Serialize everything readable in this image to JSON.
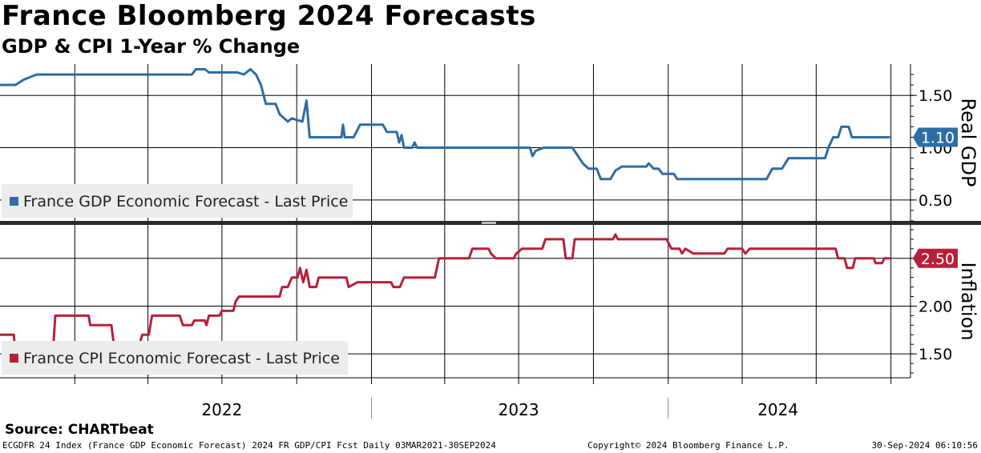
{
  "header": {
    "title": "France Bloomberg 2024 Forecasts",
    "subtitle": "GDP & CPI 1-Year % Change"
  },
  "footer": {
    "source": "Source: CHARTbeat",
    "left": "ECGDFR 24 Index (France GDP Economic Forecast) 2024 FR GDP/CPI Fcst  Daily 03MAR2021-30SEP2024",
    "center": "Copyright© 2024 Bloomberg Finance L.P.",
    "right": "30-Sep-2024 06:10:56"
  },
  "colors": {
    "gdp": "#2e6da4",
    "cpi": "#b8203a",
    "grid": "#000000",
    "legend_bg": "#ececec"
  },
  "chart_data": [
    {
      "type": "line",
      "panel": "top",
      "ylabel": "Real GDP",
      "ylim": [
        0.3,
        1.8
      ],
      "yticks": [
        0.5,
        1.0,
        1.5
      ],
      "ytick_labels": [
        "0.50",
        "1.00",
        "1.50"
      ],
      "xlim": [
        "2021-10-01",
        "2024-10-25"
      ],
      "x_gridlines": [
        "2022-01-01",
        "2022-04-01",
        "2022-07-01",
        "2022-10-01",
        "2023-01-01",
        "2023-04-01",
        "2023-07-01",
        "2023-10-01",
        "2024-01-01",
        "2024-04-01",
        "2024-07-01",
        "2024-10-01"
      ],
      "grid": true,
      "legend_position": "bottom-left",
      "last_value_label": "1.10",
      "series": [
        {
          "name": "France GDP Economic Forecast - Last Price",
          "points": [
            [
              "2021-10-01",
              1.6
            ],
            [
              "2021-10-20",
              1.6
            ],
            [
              "2021-10-30",
              1.65
            ],
            [
              "2021-11-15",
              1.7
            ],
            [
              "2022-05-25",
              1.7
            ],
            [
              "2022-05-30",
              1.75
            ],
            [
              "2022-06-10",
              1.75
            ],
            [
              "2022-06-15",
              1.72
            ],
            [
              "2022-07-20",
              1.72
            ],
            [
              "2022-07-28",
              1.7
            ],
            [
              "2022-08-05",
              1.75
            ],
            [
              "2022-08-12",
              1.7
            ],
            [
              "2022-08-18",
              1.6
            ],
            [
              "2022-08-24",
              1.42
            ],
            [
              "2022-09-05",
              1.42
            ],
            [
              "2022-09-10",
              1.32
            ],
            [
              "2022-09-20",
              1.25
            ],
            [
              "2022-09-25",
              1.28
            ],
            [
              "2022-10-08",
              1.25
            ],
            [
              "2022-10-13",
              1.45
            ],
            [
              "2022-10-17",
              1.1
            ],
            [
              "2022-11-25",
              1.1
            ],
            [
              "2022-11-27",
              1.22
            ],
            [
              "2022-11-29",
              1.1
            ],
            [
              "2022-12-10",
              1.1
            ],
            [
              "2022-12-18",
              1.22
            ],
            [
              "2023-01-15",
              1.22
            ],
            [
              "2023-01-20",
              1.15
            ],
            [
              "2023-02-01",
              1.15
            ],
            [
              "2023-02-04",
              1.05
            ],
            [
              "2023-02-07",
              1.12
            ],
            [
              "2023-02-10",
              1.0
            ],
            [
              "2023-02-20",
              1.0
            ],
            [
              "2023-02-23",
              1.05
            ],
            [
              "2023-02-26",
              1.0
            ],
            [
              "2023-07-15",
              1.0
            ],
            [
              "2023-07-18",
              0.92
            ],
            [
              "2023-07-22",
              0.97
            ],
            [
              "2023-08-01",
              1.0
            ],
            [
              "2023-09-05",
              1.0
            ],
            [
              "2023-09-12",
              0.92
            ],
            [
              "2023-09-18",
              0.85
            ],
            [
              "2023-09-25",
              0.8
            ],
            [
              "2023-10-05",
              0.8
            ],
            [
              "2023-10-10",
              0.7
            ],
            [
              "2023-10-22",
              0.7
            ],
            [
              "2023-10-28",
              0.78
            ],
            [
              "2023-11-05",
              0.82
            ],
            [
              "2023-12-05",
              0.82
            ],
            [
              "2023-12-08",
              0.85
            ],
            [
              "2023-12-14",
              0.8
            ],
            [
              "2023-12-20",
              0.8
            ],
            [
              "2023-12-25",
              0.75
            ],
            [
              "2024-01-08",
              0.75
            ],
            [
              "2024-01-12",
              0.7
            ],
            [
              "2024-05-01",
              0.7
            ],
            [
              "2024-05-08",
              0.8
            ],
            [
              "2024-05-20",
              0.8
            ],
            [
              "2024-05-28",
              0.9
            ],
            [
              "2024-07-10",
              0.9
            ],
            [
              "2024-07-12",
              0.9
            ],
            [
              "2024-07-16",
              1.0
            ],
            [
              "2024-07-22",
              1.1
            ],
            [
              "2024-07-28",
              1.1
            ],
            [
              "2024-08-01",
              1.2
            ],
            [
              "2024-08-10",
              1.2
            ],
            [
              "2024-08-14",
              1.1
            ],
            [
              "2024-09-30",
              1.1
            ]
          ]
        }
      ]
    },
    {
      "type": "line",
      "panel": "bottom",
      "ylabel": "Inflation",
      "ylim": [
        1.25,
        2.85
      ],
      "yticks": [
        1.5,
        2.0,
        2.5
      ],
      "ytick_labels": [
        "1.50",
        "2.00",
        "2.50"
      ],
      "xlim": [
        "2021-10-01",
        "2024-10-25"
      ],
      "x_gridlines": [
        "2022-01-01",
        "2022-04-01",
        "2022-07-01",
        "2022-10-01",
        "2023-01-01",
        "2023-04-01",
        "2023-07-01",
        "2023-10-01",
        "2024-01-01",
        "2024-04-01",
        "2024-07-01",
        "2024-10-01"
      ],
      "x_tick_labels": [
        "2022",
        "2023",
        "2024"
      ],
      "grid": true,
      "legend_position": "bottom-left",
      "last_value_label": "2.50",
      "series": [
        {
          "name": "France CPI Economic Forecast - Last Price",
          "points": [
            [
              "2021-10-01",
              1.7
            ],
            [
              "2021-10-18",
              1.7
            ],
            [
              "2021-10-20",
              1.5
            ],
            [
              "2021-12-05",
              1.5
            ],
            [
              "2021-12-08",
              1.9
            ],
            [
              "2022-01-18",
              1.9
            ],
            [
              "2022-01-20",
              1.8
            ],
            [
              "2022-02-15",
              1.8
            ],
            [
              "2022-02-18",
              1.6
            ],
            [
              "2022-02-22",
              1.55
            ],
            [
              "2022-03-20",
              1.55
            ],
            [
              "2022-03-25",
              1.7
            ],
            [
              "2022-04-02",
              1.7
            ],
            [
              "2022-04-06",
              1.9
            ],
            [
              "2022-05-10",
              1.9
            ],
            [
              "2022-05-14",
              1.8
            ],
            [
              "2022-05-25",
              1.8
            ],
            [
              "2022-05-28",
              1.85
            ],
            [
              "2022-06-10",
              1.85
            ],
            [
              "2022-06-12",
              1.8
            ],
            [
              "2022-06-15",
              1.9
            ],
            [
              "2022-06-28",
              1.9
            ],
            [
              "2022-07-01",
              1.95
            ],
            [
              "2022-07-15",
              1.95
            ],
            [
              "2022-07-18",
              2.05
            ],
            [
              "2022-07-22",
              2.1
            ],
            [
              "2022-09-10",
              2.1
            ],
            [
              "2022-09-13",
              2.2
            ],
            [
              "2022-09-20",
              2.2
            ],
            [
              "2022-09-25",
              2.3
            ],
            [
              "2022-10-02",
              2.3
            ],
            [
              "2022-10-05",
              2.4
            ],
            [
              "2022-10-09",
              2.25
            ],
            [
              "2022-10-13",
              2.38
            ],
            [
              "2022-10-17",
              2.2
            ],
            [
              "2022-10-25",
              2.2
            ],
            [
              "2022-10-28",
              2.3
            ],
            [
              "2022-12-01",
              2.3
            ],
            [
              "2022-12-04",
              2.2
            ],
            [
              "2022-12-15",
              2.25
            ],
            [
              "2023-01-25",
              2.25
            ],
            [
              "2023-01-28",
              2.2
            ],
            [
              "2023-02-05",
              2.2
            ],
            [
              "2023-02-10",
              2.3
            ],
            [
              "2023-03-20",
              2.3
            ],
            [
              "2023-03-25",
              2.5
            ],
            [
              "2023-05-01",
              2.5
            ],
            [
              "2023-05-05",
              2.6
            ],
            [
              "2023-05-25",
              2.6
            ],
            [
              "2023-05-28",
              2.55
            ],
            [
              "2023-06-03",
              2.5
            ],
            [
              "2023-06-25",
              2.5
            ],
            [
              "2023-06-28",
              2.55
            ],
            [
              "2023-07-05",
              2.6
            ],
            [
              "2023-07-25",
              2.6
            ],
            [
              "2023-07-30",
              2.6
            ],
            [
              "2023-08-03",
              2.7
            ],
            [
              "2023-08-25",
              2.7
            ],
            [
              "2023-08-28",
              2.5
            ],
            [
              "2023-09-05",
              2.5
            ],
            [
              "2023-09-08",
              2.7
            ],
            [
              "2023-10-25",
              2.7
            ],
            [
              "2023-10-28",
              2.75
            ],
            [
              "2023-10-31",
              2.7
            ],
            [
              "2023-12-30",
              2.7
            ],
            [
              "2024-01-05",
              2.6
            ],
            [
              "2024-01-15",
              2.6
            ],
            [
              "2024-01-18",
              2.55
            ],
            [
              "2024-01-22",
              2.6
            ],
            [
              "2024-02-01",
              2.55
            ],
            [
              "2024-03-10",
              2.55
            ],
            [
              "2024-03-14",
              2.6
            ],
            [
              "2024-04-01",
              2.6
            ],
            [
              "2024-04-05",
              2.55
            ],
            [
              "2024-04-10",
              2.6
            ],
            [
              "2024-07-25",
              2.6
            ],
            [
              "2024-07-28",
              2.5
            ],
            [
              "2024-08-05",
              2.5
            ],
            [
              "2024-08-08",
              2.4
            ],
            [
              "2024-08-15",
              2.4
            ],
            [
              "2024-08-18",
              2.5
            ],
            [
              "2024-09-10",
              2.5
            ],
            [
              "2024-09-12",
              2.45
            ],
            [
              "2024-09-20",
              2.45
            ],
            [
              "2024-09-23",
              2.5
            ],
            [
              "2024-09-30",
              2.5
            ]
          ]
        }
      ]
    }
  ]
}
